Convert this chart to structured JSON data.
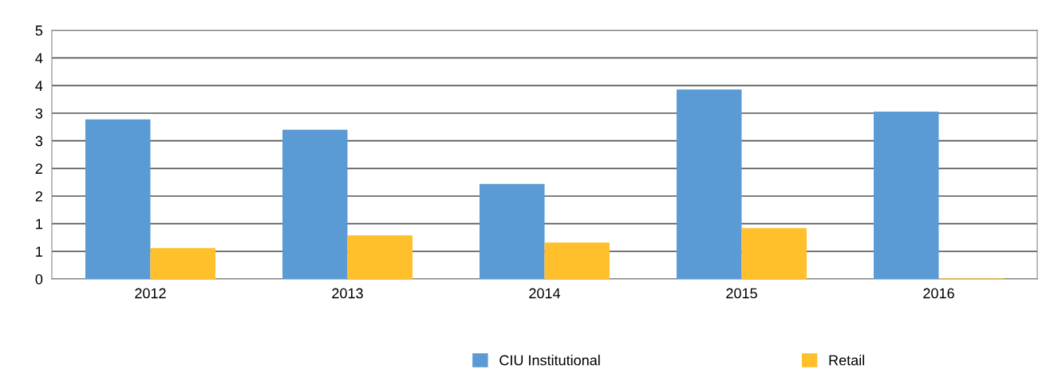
{
  "chart_data": {
    "type": "bar",
    "categories": [
      "2012",
      "2013",
      "2014",
      "2015",
      "2016"
    ],
    "series": [
      {
        "name": "CIU Institutional",
        "color": "#5b9bd5",
        "values": [
          2.89,
          2.7,
          1.72,
          3.43,
          3.03
        ]
      },
      {
        "name": "Retail",
        "color": "#ffc02c",
        "values": [
          0.56,
          0.79,
          0.66,
          0.92,
          0.01
        ]
      }
    ],
    "ylim": [
      0,
      4.5
    ],
    "yticks": [
      0,
      {
        "value": 0.5,
        "label": "1"
      },
      1,
      {
        "value": 1.5,
        "label": "2"
      },
      2,
      {
        "value": 2.5,
        "label": "3"
      },
      3,
      {
        "value": 3.5,
        "label": "4"
      },
      4,
      {
        "value": 4.5,
        "label": "5"
      }
    ],
    "grid": "y",
    "legend": "bottom"
  }
}
